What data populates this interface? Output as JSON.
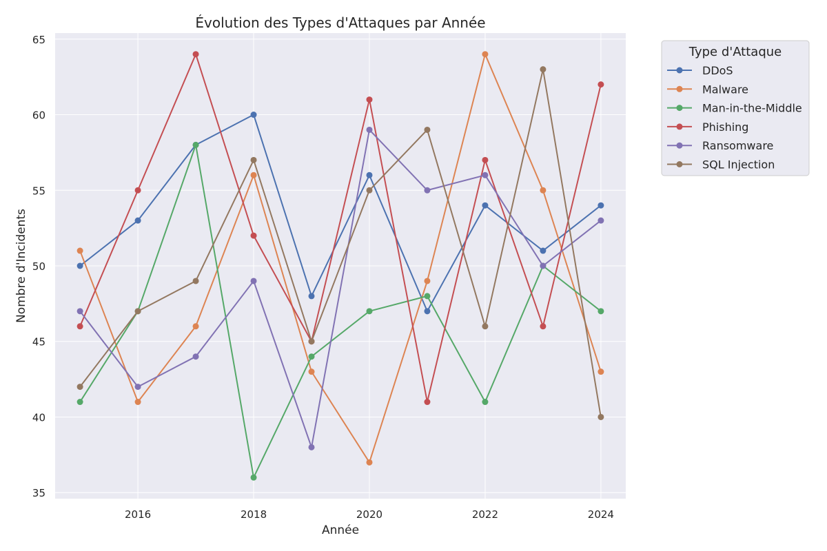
{
  "chart_data": {
    "type": "line",
    "title": "Évolution des Types d'Attaques par Année",
    "xlabel": "Année",
    "ylabel": "Nombre d'Incidents",
    "x": [
      2015,
      2016,
      2017,
      2018,
      2019,
      2020,
      2021,
      2022,
      2023,
      2024
    ],
    "xlim": [
      2014.57,
      2024.43
    ],
    "ylim": [
      34.6,
      65.4
    ],
    "xticks": [
      2016,
      2018,
      2020,
      2022,
      2024
    ],
    "yticks": [
      35,
      40,
      45,
      50,
      55,
      60,
      65
    ],
    "grid": true,
    "legend_title": "Type d'Attaque",
    "legend_position": "outside-top-right",
    "series": [
      {
        "name": "DDoS",
        "color": "#4c72b0",
        "values": [
          50,
          53,
          58,
          60,
          48,
          56,
          47,
          54,
          51,
          54
        ]
      },
      {
        "name": "Malware",
        "color": "#dd8452",
        "values": [
          51,
          41,
          46,
          56,
          43,
          37,
          49,
          64,
          55,
          43
        ]
      },
      {
        "name": "Man-in-the-Middle",
        "color": "#55a868",
        "values": [
          41,
          47,
          58,
          36,
          44,
          47,
          48,
          41,
          50,
          47
        ]
      },
      {
        "name": "Phishing",
        "color": "#c44e52",
        "values": [
          46,
          55,
          64,
          52,
          45,
          61,
          41,
          57,
          46,
          62
        ]
      },
      {
        "name": "Ransomware",
        "color": "#8172b3",
        "values": [
          47,
          42,
          44,
          49,
          38,
          59,
          55,
          56,
          50,
          53
        ]
      },
      {
        "name": "SQL Injection",
        "color": "#937860",
        "values": [
          42,
          47,
          49,
          57,
          45,
          55,
          59,
          46,
          63,
          40
        ]
      }
    ]
  }
}
